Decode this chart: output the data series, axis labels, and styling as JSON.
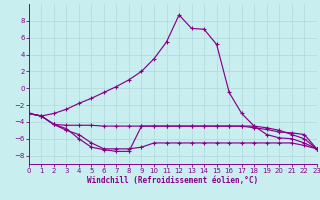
{
  "xlabel": "Windchill (Refroidissement éolien,°C)",
  "background_color": "#c8eef0",
  "grid_color": "#b0d8da",
  "line_color": "#880088",
  "x": [
    0,
    1,
    2,
    3,
    4,
    5,
    6,
    7,
    8,
    9,
    10,
    11,
    12,
    13,
    14,
    15,
    16,
    17,
    18,
    19,
    20,
    21,
    22,
    23
  ],
  "line_main": [
    -3.0,
    -3.3,
    -3.0,
    -2.5,
    -1.8,
    -1.2,
    -0.5,
    0.2,
    1.0,
    2.0,
    3.5,
    5.5,
    8.7,
    7.1,
    7.0,
    5.2,
    -0.5,
    -3.0,
    -4.5,
    -4.7,
    -5.0,
    -5.5,
    -6.0,
    -7.2
  ],
  "line_flat": [
    -3.0,
    -3.3,
    -4.3,
    -4.4,
    -4.4,
    -4.4,
    -4.5,
    -4.5,
    -4.5,
    -4.5,
    -4.5,
    -4.5,
    -4.5,
    -4.5,
    -4.5,
    -4.5,
    -4.5,
    -4.5,
    -4.7,
    -4.9,
    -5.2,
    -5.3,
    -5.5,
    -7.2
  ],
  "line_low1": [
    -3.0,
    -3.3,
    -4.3,
    -5.0,
    -5.5,
    -6.5,
    -7.2,
    -7.2,
    -7.2,
    -7.0,
    -6.5,
    -6.5,
    -6.5,
    -6.5,
    -6.5,
    -6.5,
    -6.5,
    -6.5,
    -6.5,
    -6.5,
    -6.5,
    -6.5,
    -6.8,
    -7.2
  ],
  "line_low2": [
    -3.0,
    -3.3,
    -4.3,
    -4.8,
    -6.0,
    -7.0,
    -7.3,
    -7.5,
    -7.5,
    -4.5,
    -4.5,
    -4.5,
    -4.5,
    -4.5,
    -4.5,
    -4.5,
    -4.5,
    -4.5,
    -4.5,
    -5.5,
    -5.9,
    -6.0,
    -6.5,
    -7.2
  ],
  "ylim": [
    -9,
    10
  ],
  "xlim": [
    0,
    23
  ],
  "yticks": [
    -8,
    -6,
    -4,
    -2,
    0,
    2,
    4,
    6,
    8
  ],
  "xticks": [
    0,
    1,
    2,
    3,
    4,
    5,
    6,
    7,
    8,
    9,
    10,
    11,
    12,
    13,
    14,
    15,
    16,
    17,
    18,
    19,
    20,
    21,
    22,
    23
  ]
}
